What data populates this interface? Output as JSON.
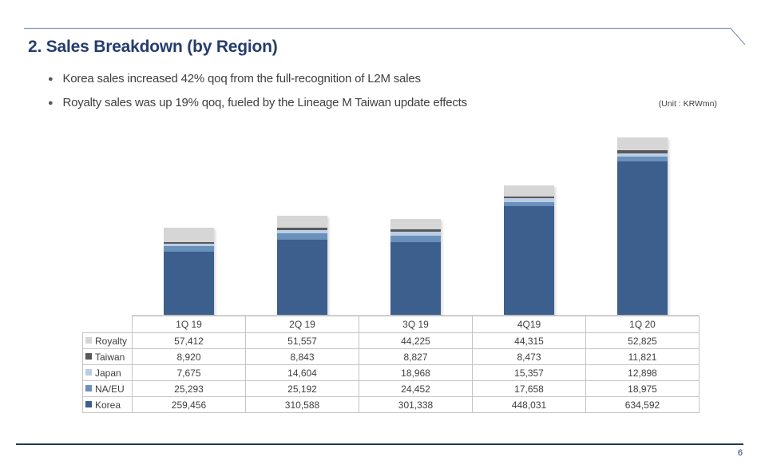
{
  "header": {
    "title": "2. Sales Breakdown (by Region)",
    "bullets": [
      "Korea sales increased 42% qoq from the full-recognition of L2M sales",
      "Royalty sales was up 19% qoq, fueled by the Lineage M Taiwan update effects"
    ],
    "unit_label": "(Unit : KRWmn)"
  },
  "chart_data": {
    "type": "bar",
    "stacked": true,
    "title": "Sales Breakdown (by Region)",
    "unit": "KRWmn",
    "categories": [
      "1Q 19",
      "2Q 19",
      "3Q 19",
      "4Q19",
      "1Q 20"
    ],
    "series": [
      {
        "name": "Royalty",
        "color": "#d6d6d6",
        "values": [
          57412,
          51557,
          44225,
          44315,
          52825
        ]
      },
      {
        "name": "Taiwan",
        "color": "#595959",
        "values": [
          8920,
          8843,
          8827,
          8473,
          11821
        ]
      },
      {
        "name": "Japan",
        "color": "#b9cee6",
        "values": [
          7675,
          14604,
          18968,
          15357,
          12898
        ]
      },
      {
        "name": "NA/EU",
        "color": "#6b90ba",
        "values": [
          25293,
          25192,
          24452,
          17658,
          18975
        ]
      },
      {
        "name": "Korea",
        "color": "#3c5f8d",
        "values": [
          259456,
          310588,
          301338,
          448031,
          634592
        ]
      }
    ],
    "stack_order_bottom_to_top": [
      "Korea",
      "NA/EU",
      "Japan",
      "Taiwan",
      "Royalty"
    ],
    "legend_position": "table-left",
    "gridlines": false,
    "baseline_color": "#d6d6d6"
  },
  "footer": {
    "page_number": "6"
  }
}
